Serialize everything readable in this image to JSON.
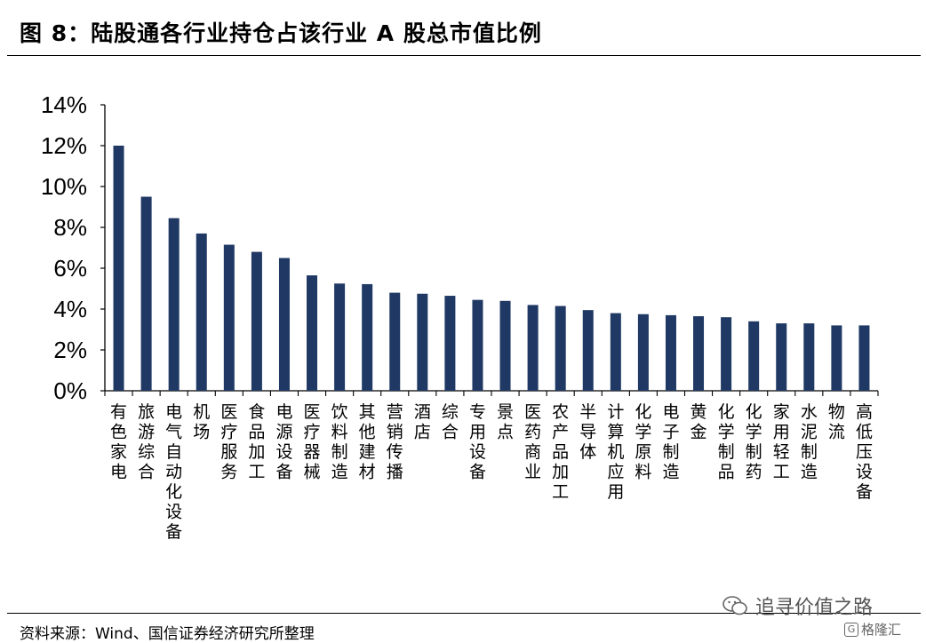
{
  "header": {
    "title": "图 8：陆股通各行业持仓占该行业 A 股总市值比例"
  },
  "footer": {
    "source": "资料来源：Wind、国信证券经济研究所整理",
    "watermark": "追寻价值之路",
    "logo": "格隆汇",
    "logo_icon": "G"
  },
  "chart_data": {
    "type": "bar",
    "title": "",
    "xlabel": "",
    "ylabel": "",
    "ylim": [
      0,
      14
    ],
    "yticks": [
      "0%",
      "2%",
      "4%",
      "6%",
      "8%",
      "10%",
      "12%",
      "14%"
    ],
    "bar_color": "#1f3864",
    "grid": false,
    "categories": [
      "有色家电",
      "旅游综合",
      "电气自动化设备",
      "机场",
      "医疗服务",
      "食品加工",
      "电源设备",
      "医疗器械",
      "饮料制造",
      "其他建材",
      "营销传播",
      "酒店",
      "综合",
      "专用设备",
      "景点",
      "医药商业",
      "农产品加工",
      "半导体",
      "计算机应用",
      "化学原料",
      "电子制造",
      "黄金",
      "化学制品",
      "化学制药",
      "家用轻工",
      "水泥制造",
      "物流",
      "高低压设备"
    ],
    "values": [
      12.0,
      9.5,
      8.45,
      7.7,
      7.15,
      6.8,
      6.5,
      5.65,
      5.25,
      5.22,
      4.8,
      4.75,
      4.65,
      4.45,
      4.4,
      4.2,
      4.15,
      3.95,
      3.8,
      3.75,
      3.7,
      3.65,
      3.6,
      3.4,
      3.3,
      3.3,
      3.2,
      3.2
    ]
  }
}
